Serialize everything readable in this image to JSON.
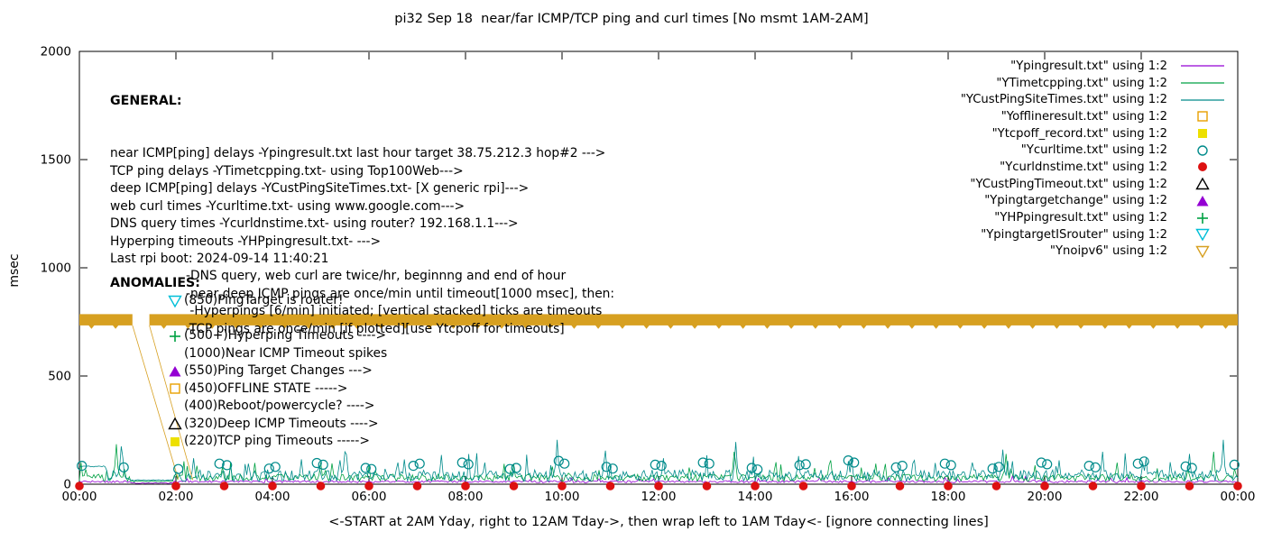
{
  "chart_data": {
    "type": "line",
    "title": "pi32 Sep 18  near/far ICMP/TCP ping and curl times [No msmt 1AM-2AM]",
    "ylabel": "msec",
    "xlabel": "<-START at 2AM Yday, right to 12AM Tday->, then wrap left to 1AM Tday<- [ignore connecting lines]",
    "ylim": [
      0,
      2000
    ],
    "y_ticks": [
      0,
      500,
      1000,
      1500,
      2000
    ],
    "x_tick_labels": [
      "00:00",
      "02:00",
      "04:00",
      "06:00",
      "08:00",
      "10:00",
      "12:00",
      "14:00",
      "16:00",
      "18:00",
      "20:00",
      "22:00",
      "00:00"
    ],
    "x_hours_span": 24,
    "series": [
      {
        "name": "Ypingresult.txt",
        "style": "line",
        "color": "#9400D3",
        "baseline_msec": 12,
        "noise_msec": 5,
        "burst_chance": 0.03,
        "burst_amp_msec": 25,
        "seed": 11,
        "spikes": []
      },
      {
        "name": "YTimetcpping.txt",
        "style": "line",
        "color": "#00A143",
        "baseline_msec": 30,
        "noise_msec": 16,
        "burst_chance": 0.07,
        "burst_amp_msec": 70,
        "seed": 22,
        "spikes": [
          [
            0.75,
            185
          ],
          [
            5.0,
            100
          ],
          [
            9.0,
            92
          ],
          [
            13.55,
            150
          ],
          [
            16.5,
            95
          ],
          [
            19.2,
            140
          ],
          [
            21.5,
            100
          ],
          [
            23.5,
            150
          ]
        ]
      },
      {
        "name": "YCustPingSiteTimes.txt",
        "style": "line",
        "color": "#008B8B",
        "baseline_msec": 40,
        "noise_msec": 26,
        "burst_chance": 0.08,
        "burst_amp_msec": 95,
        "seed": 33,
        "start_plateau": {
          "until_hour": 0.55,
          "msec": 82
        },
        "spikes": [
          [
            0.85,
            175
          ],
          [
            2.35,
            120
          ],
          [
            3.5,
            95
          ],
          [
            4.6,
            115
          ],
          [
            5.5,
            150
          ],
          [
            6.6,
            100
          ],
          [
            7.5,
            135
          ],
          [
            8.4,
            100
          ],
          [
            9.9,
            205
          ],
          [
            10.9,
            155
          ],
          [
            12.1,
            120
          ],
          [
            13.6,
            195
          ],
          [
            14.9,
            130
          ],
          [
            16.0,
            120
          ],
          [
            17.3,
            110
          ],
          [
            18.5,
            100
          ],
          [
            19.15,
            160
          ],
          [
            20.3,
            110
          ],
          [
            21.2,
            150
          ],
          [
            22.1,
            120
          ],
          [
            23.0,
            140
          ],
          [
            23.7,
            205
          ]
        ]
      }
    ],
    "curl_points": [
      [
        0.05,
        85
      ],
      [
        0.92,
        78
      ],
      [
        2.05,
        70
      ],
      [
        2.9,
        95
      ],
      [
        3.06,
        88
      ],
      [
        3.93,
        72
      ],
      [
        4.06,
        80
      ],
      [
        4.92,
        98
      ],
      [
        5.05,
        90
      ],
      [
        5.93,
        75
      ],
      [
        6.05,
        70
      ],
      [
        6.92,
        85
      ],
      [
        7.05,
        95
      ],
      [
        7.93,
        100
      ],
      [
        8.06,
        92
      ],
      [
        8.92,
        70
      ],
      [
        9.05,
        75
      ],
      [
        9.93,
        108
      ],
      [
        10.05,
        95
      ],
      [
        10.92,
        80
      ],
      [
        11.05,
        72
      ],
      [
        11.93,
        90
      ],
      [
        12.06,
        85
      ],
      [
        12.92,
        100
      ],
      [
        13.05,
        95
      ],
      [
        13.93,
        75
      ],
      [
        14.05,
        68
      ],
      [
        14.92,
        88
      ],
      [
        15.05,
        92
      ],
      [
        15.93,
        110
      ],
      [
        16.05,
        100
      ],
      [
        16.92,
        78
      ],
      [
        17.05,
        85
      ],
      [
        17.93,
        95
      ],
      [
        18.06,
        88
      ],
      [
        18.92,
        72
      ],
      [
        19.05,
        80
      ],
      [
        19.93,
        100
      ],
      [
        20.05,
        92
      ],
      [
        20.92,
        85
      ],
      [
        21.05,
        78
      ],
      [
        21.93,
        95
      ],
      [
        22.06,
        105
      ],
      [
        22.92,
        82
      ],
      [
        23.05,
        75
      ],
      [
        23.93,
        90
      ]
    ],
    "curl_color": "#008B8B",
    "dns_hours": [
      0,
      2,
      3,
      4,
      5,
      6,
      7,
      8,
      9,
      10,
      11,
      12,
      13,
      14,
      15,
      16,
      17,
      18,
      19,
      20,
      21,
      22,
      23,
      24
    ],
    "dns_value_msec": 0,
    "dns_color": "#DD1111",
    "noipv6_band": {
      "y_msec": 760,
      "half_height_msec": 26,
      "gap_hours": [
        1.1,
        1.45
      ],
      "color": "#D7A021"
    },
    "legend": [
      {
        "label": "\"Ypingresult.txt\" using 1:2",
        "marker": "line",
        "color": "#9400D3"
      },
      {
        "label": "\"YTimetcpping.txt\" using 1:2",
        "marker": "line",
        "color": "#00A143"
      },
      {
        "label": "\"YCustPingSiteTimes.txt\" using 1:2",
        "marker": "line",
        "color": "#008B8B"
      },
      {
        "label": "\"Yofflineresult.txt\" using 1:2",
        "marker": "square-open",
        "color": "#E8A000"
      },
      {
        "label": "\"Ytcpoff_record.txt\" using 1:2",
        "marker": "square-filled",
        "color": "#EDE000"
      },
      {
        "label": "\"Ycurltime.txt\" using 1:2",
        "marker": "circle-open",
        "color": "#008B8B"
      },
      {
        "label": "\"Ycurldnstime.txt\" using 1:2",
        "marker": "circle-filled",
        "color": "#DD1111"
      },
      {
        "label": "\"YCustPingTimeout.txt\" using 1:2",
        "marker": "triangle-up-open",
        "color": "#000000"
      },
      {
        "label": "\"Ypingtargetchange\" using 1:2",
        "marker": "triangle-up-filled",
        "color": "#9400D3"
      },
      {
        "label": "\"YHPpingresult.txt\" using 1:2",
        "marker": "plus",
        "color": "#00A143"
      },
      {
        "label": "\"YpingtargetISrouter\" using 1:2",
        "marker": "triangle-down-open",
        "color": "#00BFD8"
      },
      {
        "label": "\"Ynoipv6\" using 1:2",
        "marker": "triangle-down-open",
        "color": "#D7A021"
      }
    ]
  },
  "annotations": {
    "general_title": "GENERAL:",
    "general_lines": [
      "near ICMP[ping] delays -Ypingresult.txt last hour target 38.75.212.3 hop#2 --->",
      "TCP ping delays -YTimetcpping.txt- using Top100Web--->",
      "deep ICMP[ping] delays -YCustPingSiteTimes.txt- [X generic rpi]--->",
      "web curl times -Ycurltime.txt- using www.google.com--->",
      "DNS query times -Ycurldnstime.txt- using router? 192.168.1.1--->",
      "Hyperping timeouts -YHPpingresult.txt- --->",
      "Last rpi boot: 2024-09-14 11:40:21"
    ],
    "general_indented": [
      "-DNS query, web curl are twice/hr, beginnng and end of hour",
      "-near,deep ICMP pings are once/min until timeout[1000 msec], then:",
      " -Hyperpings [6/min] initiated; [vertical stacked] ticks are timeouts",
      "-TCP pings are once/min [if plotted][use Ytcpoff for timeouts]"
    ],
    "anomalies_title": "ANOMALIES:",
    "anomalies": [
      {
        "marker": "triangle-down-open",
        "color": "#00BFD8",
        "text": "(850)PingTarget is router!"
      },
      {
        "marker": null,
        "color": null,
        "text": ""
      },
      {
        "marker": "plus",
        "color": "#00A143",
        "text": "(500+)Hyperping Timeouts ---->"
      },
      {
        "marker": null,
        "color": null,
        "text": "(1000)Near ICMP Timeout spikes"
      },
      {
        "marker": "triangle-up-filled",
        "color": "#9400D3",
        "text": "(550)Ping Target Changes --->"
      },
      {
        "marker": "square-open",
        "color": "#E8A000",
        "text": "(450)OFFLINE STATE ----->"
      },
      {
        "marker": null,
        "color": null,
        "text": "(400)Reboot/powercycle? ---->"
      },
      {
        "marker": "triangle-up-open",
        "color": "#000000",
        "text": "(320)Deep ICMP Timeouts ---->"
      },
      {
        "marker": "square-filled",
        "color": "#EDE000",
        "text": "(220)TCP ping Timeouts ----->"
      }
    ]
  }
}
